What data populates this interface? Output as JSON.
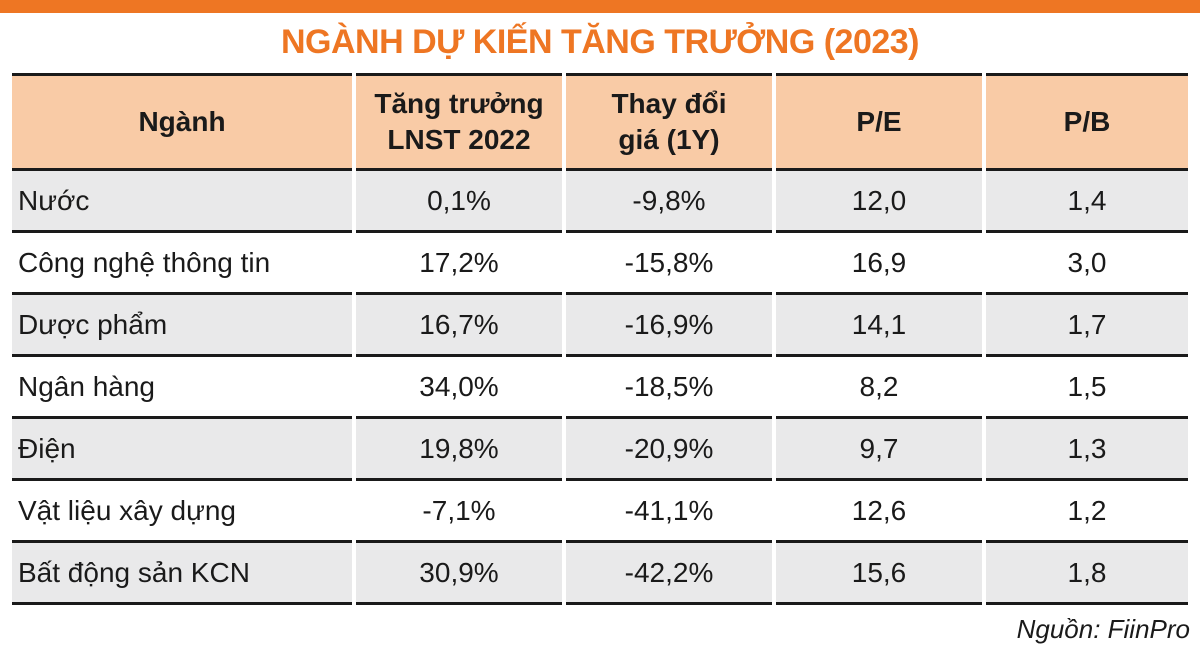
{
  "page": {
    "title": "NGÀNH DỰ KIẾN TĂNG TRƯỞNG (2023)",
    "source": "Nguồn: FiinPro"
  },
  "colors": {
    "accent_orange": "#EE7623",
    "header_bg": "#F9CBA6",
    "row_alt_bg": "#E9E9EA",
    "border": "#1A1A1A"
  },
  "table": {
    "headers": {
      "nganh": "Ngành",
      "tang_truong": "Tăng trưởng\nLNST 2022",
      "thay_doi": "Thay đổi\ngiá (1Y)",
      "pe": "P/E",
      "pb": "P/B"
    },
    "row_keys": [
      "nganh",
      "tang_truong",
      "thay_doi",
      "pe",
      "pb"
    ],
    "rows": [
      {
        "nganh": "Nước",
        "tang_truong": "0,1%",
        "thay_doi": "-9,8%",
        "pe": "12,0",
        "pb": "1,4"
      },
      {
        "nganh": "Công nghệ thông tin",
        "tang_truong": "17,2%",
        "thay_doi": "-15,8%",
        "pe": "16,9",
        "pb": "3,0"
      },
      {
        "nganh": "Dược phẩm",
        "tang_truong": "16,7%",
        "thay_doi": "-16,9%",
        "pe": "14,1",
        "pb": "1,7"
      },
      {
        "nganh": "Ngân hàng",
        "tang_truong": "34,0%",
        "thay_doi": "-18,5%",
        "pe": "8,2",
        "pb": "1,5"
      },
      {
        "nganh": "Điện",
        "tang_truong": "19,8%",
        "thay_doi": "-20,9%",
        "pe": "9,7",
        "pb": "1,3"
      },
      {
        "nganh": "Vật liệu xây dựng",
        "tang_truong": "-7,1%",
        "thay_doi": "-41,1%",
        "pe": "12,6",
        "pb": "1,2"
      },
      {
        "nganh": "Bất động sản KCN",
        "tang_truong": "30,9%",
        "thay_doi": "-42,2%",
        "pe": "15,6",
        "pb": "1,8"
      }
    ]
  },
  "chart_data": {
    "type": "table",
    "title": "NGÀNH DỰ KIẾN TĂNG TRƯỞNG (2023)",
    "columns": [
      "Ngành",
      "Tăng trưởng LNST 2022",
      "Thay đổi giá (1Y)",
      "P/E",
      "P/B"
    ],
    "rows": [
      [
        "Nước",
        "0,1%",
        "-9,8%",
        "12,0",
        "1,4"
      ],
      [
        "Công nghệ thông tin",
        "17,2%",
        "-15,8%",
        "16,9",
        "3,0"
      ],
      [
        "Dược phẩm",
        "16,7%",
        "-16,9%",
        "14,1",
        "1,7"
      ],
      [
        "Ngân hàng",
        "34,0%",
        "-18,5%",
        "8,2",
        "1,5"
      ],
      [
        "Điện",
        "19,8%",
        "-20,9%",
        "9,7",
        "1,3"
      ],
      [
        "Vật liệu xây dựng",
        "-7,1%",
        "-41,1%",
        "12,6",
        "1,2"
      ],
      [
        "Bất động sản KCN",
        "30,9%",
        "-42,2%",
        "15,6",
        "1,8"
      ]
    ],
    "source": "Nguồn: FiinPro",
    "layout": {
      "header_bg": "#F9CBA6",
      "zebra_striping": true,
      "first_row_shaded": true
    }
  }
}
